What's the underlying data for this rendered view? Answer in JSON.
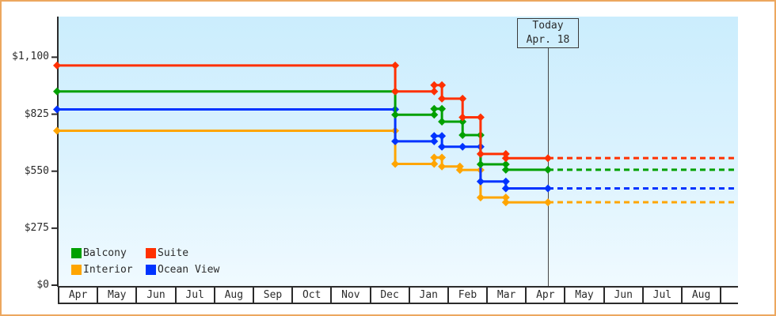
{
  "chart_data": {
    "type": "line",
    "subtype": "step-price-history",
    "today_label": {
      "line1": "Today",
      "line2": "Apr. 18"
    },
    "today_month_offset": 12.54,
    "forecast_end_month_offset": 17.4,
    "y_axis": {
      "ticks": [
        0,
        275,
        550,
        825,
        1100
      ],
      "labels": [
        "$0",
        "$275",
        "$550",
        "$825",
        "$1,100"
      ],
      "range_visible": [
        0,
        1300
      ],
      "grid": false
    },
    "x_axis": {
      "month_labels": [
        "Apr",
        "May",
        "Jun",
        "Jul",
        "Aug",
        "Sep",
        "Oct",
        "Nov",
        "Dec",
        "Jan",
        "Feb",
        "Mar",
        "Apr",
        "May",
        "Jun",
        "Jul",
        "Aug"
      ],
      "note_month_offset_unit": "months since first Apr cell"
    },
    "series": [
      {
        "name": "Interior",
        "color": "#ffa500",
        "points": [
          [
            -0.06,
            745
          ],
          [
            8.62,
            585
          ],
          [
            9.62,
            616
          ],
          [
            9.82,
            573
          ],
          [
            10.28,
            556
          ],
          [
            10.81,
            423
          ],
          [
            11.46,
            400
          ]
        ]
      },
      {
        "name": "Ocean View",
        "color": "#0033ff",
        "points": [
          [
            -0.06,
            848
          ],
          [
            8.62,
            694
          ],
          [
            9.62,
            720
          ],
          [
            9.82,
            668
          ],
          [
            10.35,
            668
          ],
          [
            10.81,
            500
          ],
          [
            11.46,
            467
          ]
        ]
      },
      {
        "name": "Balcony",
        "color": "#00a000",
        "points": [
          [
            -0.06,
            935
          ],
          [
            8.62,
            822
          ],
          [
            9.62,
            851
          ],
          [
            9.82,
            789
          ],
          [
            10.35,
            724
          ],
          [
            10.81,
            583
          ],
          [
            11.46,
            557
          ]
        ]
      },
      {
        "name": "Suite",
        "color": "#ff3000",
        "points": [
          [
            -0.06,
            1060
          ],
          [
            8.62,
            935
          ],
          [
            9.62,
            965
          ],
          [
            9.82,
            900
          ],
          [
            10.35,
            810
          ],
          [
            10.81,
            633
          ],
          [
            11.46,
            613
          ]
        ]
      }
    ],
    "today_prices": {
      "Suite": 613,
      "Balcony": 557,
      "Ocean View": 467,
      "Interior": 400
    },
    "legend": [
      {
        "label": "Balcony",
        "color": "#00a000"
      },
      {
        "label": "Suite",
        "color": "#ff3000"
      },
      {
        "label": "Interior",
        "color": "#ffa500"
      },
      {
        "label": "Ocean View",
        "color": "#0033ff"
      }
    ],
    "legend_position": "bottom-left",
    "accent_colors": {
      "frame_border": "#eca75f",
      "axis": "#2b2b2b",
      "today_line": "#444444",
      "plot_bg_top": "#cbedfd",
      "plot_bg_bottom": "#f0faff"
    }
  }
}
